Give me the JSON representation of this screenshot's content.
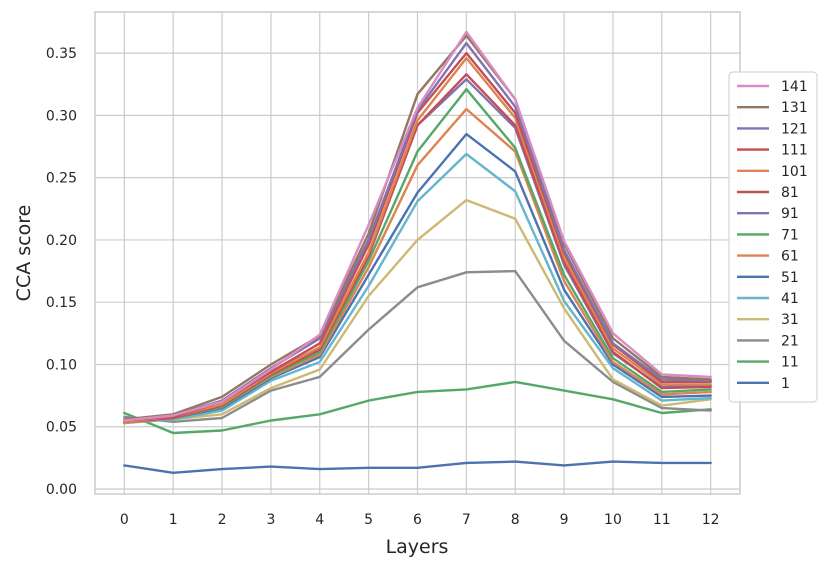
{
  "chart_data": {
    "type": "line",
    "xlabel": "Layers",
    "ylabel": "CCA score",
    "x": [
      0,
      1,
      2,
      3,
      4,
      5,
      6,
      7,
      8,
      9,
      10,
      11,
      12
    ],
    "x_tick_labels": [
      "0",
      "1",
      "2",
      "3",
      "4",
      "5",
      "6",
      "7",
      "8",
      "9",
      "10",
      "11",
      "12"
    ],
    "y_ticks": [
      0.0,
      0.05,
      0.1,
      0.15,
      0.2,
      0.25,
      0.3,
      0.35
    ],
    "y_tick_labels": [
      "0.00",
      "0.05",
      "0.10",
      "0.15",
      "0.20",
      "0.25",
      "0.30",
      "0.35"
    ],
    "xlim": [
      -0.6,
      12.6
    ],
    "ylim": [
      -0.004,
      0.383
    ],
    "grid": true,
    "legend_position": "right",
    "series": [
      {
        "name": "141",
        "color": "#da8bc3",
        "values": [
          0.055,
          0.059,
          0.07,
          0.096,
          0.124,
          0.212,
          0.306,
          0.367,
          0.313,
          0.199,
          0.125,
          0.092,
          0.09
        ]
      },
      {
        "name": "131",
        "color": "#937860",
        "values": [
          0.056,
          0.06,
          0.074,
          0.1,
          0.123,
          0.205,
          0.317,
          0.364,
          0.313,
          0.197,
          0.121,
          0.09,
          0.088
        ]
      },
      {
        "name": "121",
        "color": "#8172b3",
        "values": [
          0.055,
          0.059,
          0.071,
          0.097,
          0.121,
          0.2,
          0.304,
          0.358,
          0.307,
          0.192,
          0.117,
          0.088,
          0.087
        ]
      },
      {
        "name": "111",
        "color": "#c44e52",
        "values": [
          0.055,
          0.058,
          0.07,
          0.094,
          0.117,
          0.196,
          0.302,
          0.35,
          0.302,
          0.19,
          0.116,
          0.086,
          0.086
        ]
      },
      {
        "name": "101",
        "color": "#dd8452",
        "values": [
          0.054,
          0.058,
          0.068,
          0.093,
          0.114,
          0.19,
          0.296,
          0.346,
          0.298,
          0.186,
          0.113,
          0.084,
          0.084
        ]
      },
      {
        "name": "81",
        "color": "#c44e52",
        "values": [
          0.054,
          0.057,
          0.067,
          0.092,
          0.112,
          0.187,
          0.292,
          0.333,
          0.292,
          0.182,
          0.11,
          0.081,
          0.082
        ]
      },
      {
        "name": "91",
        "color": "#8172b3",
        "values": [
          0.054,
          0.058,
          0.068,
          0.093,
          0.113,
          0.189,
          0.292,
          0.329,
          0.29,
          0.18,
          0.109,
          0.082,
          0.083
        ]
      },
      {
        "name": "71",
        "color": "#55a868",
        "values": [
          0.054,
          0.057,
          0.066,
          0.091,
          0.11,
          0.183,
          0.271,
          0.321,
          0.274,
          0.172,
          0.105,
          0.078,
          0.08
        ]
      },
      {
        "name": "61",
        "color": "#dd8452",
        "values": [
          0.053,
          0.057,
          0.066,
          0.09,
          0.108,
          0.178,
          0.26,
          0.305,
          0.271,
          0.167,
          0.102,
          0.076,
          0.078
        ]
      },
      {
        "name": "51",
        "color": "#4c72b0",
        "values": [
          0.053,
          0.057,
          0.065,
          0.089,
          0.106,
          0.172,
          0.238,
          0.285,
          0.255,
          0.16,
          0.1,
          0.074,
          0.075
        ]
      },
      {
        "name": "41",
        "color": "#64b5cd",
        "values": [
          0.053,
          0.056,
          0.063,
          0.087,
          0.102,
          0.163,
          0.231,
          0.269,
          0.239,
          0.151,
          0.097,
          0.071,
          0.073
        ]
      },
      {
        "name": "31",
        "color": "#ccb974",
        "values": [
          0.054,
          0.056,
          0.06,
          0.081,
          0.096,
          0.155,
          0.2,
          0.232,
          0.217,
          0.145,
          0.088,
          0.067,
          0.072
        ]
      },
      {
        "name": "21",
        "color": "#8c8c8c",
        "values": [
          0.058,
          0.054,
          0.057,
          0.079,
          0.09,
          0.128,
          0.162,
          0.174,
          0.175,
          0.119,
          0.086,
          0.065,
          0.063
        ]
      },
      {
        "name": "11",
        "color": "#55a868",
        "values": [
          0.061,
          0.045,
          0.047,
          0.055,
          0.06,
          0.071,
          0.078,
          0.08,
          0.086,
          0.079,
          0.072,
          0.061,
          0.064
        ]
      },
      {
        "name": "1",
        "color": "#4c72b0",
        "values": [
          0.019,
          0.013,
          0.016,
          0.018,
          0.016,
          0.017,
          0.017,
          0.021,
          0.022,
          0.019,
          0.022,
          0.021,
          0.021
        ]
      }
    ]
  }
}
